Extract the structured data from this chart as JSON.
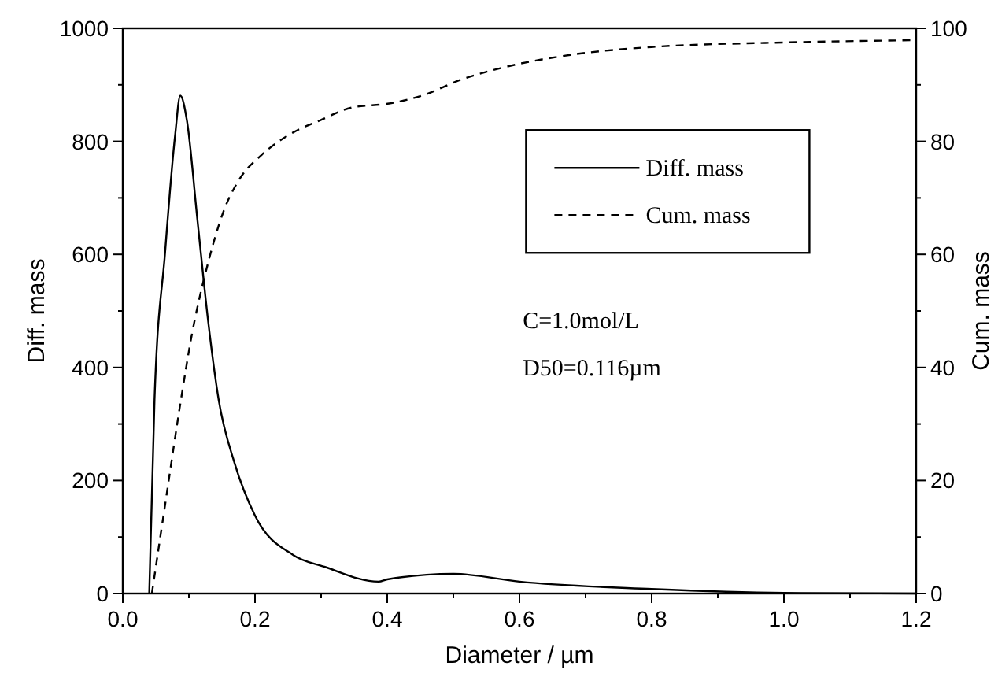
{
  "chart_data": {
    "type": "line",
    "xlabel": "Diameter / µm",
    "ylabel": "Diff. mass",
    "y2label": "Cum. mass",
    "xlim": [
      0,
      1.2
    ],
    "xticks": [
      {
        "value": 0,
        "label": "0.0"
      },
      {
        "value": 0.2,
        "label": "0.2"
      },
      {
        "value": 0.4,
        "label": "0.4"
      },
      {
        "value": 0.6,
        "label": "0.6"
      },
      {
        "value": 0.8,
        "label": "0.8"
      },
      {
        "value": 1,
        "label": "1.0"
      },
      {
        "value": 1.2,
        "label": "1.2"
      }
    ],
    "ylim": [
      0,
      1000
    ],
    "yticks": [
      0,
      200,
      400,
      600,
      800,
      1000
    ],
    "y2lim": [
      0,
      100
    ],
    "y2ticks": [
      0,
      20,
      40,
      60,
      80,
      100
    ],
    "legend": "top right",
    "marker": "none",
    "annotations": [
      "C=1.0mol/L",
      "D50=0.116µm"
    ],
    "series": [
      {
        "name": "Diff. mass",
        "color": "#000000",
        "line_style": "solid",
        "x": [
          0.04,
          0.048,
          0.064,
          0.079,
          0.087,
          0.097,
          0.113,
          0.129,
          0.145,
          0.169,
          0.2,
          0.258,
          0.306,
          0.387,
          0.4,
          0.5,
          0.6,
          0.8,
          1.0,
          1.2
        ],
        "values": [
          0,
          343,
          604,
          809,
          881,
          837,
          660,
          483,
          343,
          231,
          138,
          68,
          47,
          21,
          25,
          35,
          21,
          8,
          1,
          0
        ]
      },
      {
        "name": "Cum. mass",
        "color": "#000000",
        "axis": "y2",
        "line_style": "dashed",
        "x": [
          0.044,
          0.064,
          0.088,
          0.104,
          0.129,
          0.153,
          0.177,
          0.21,
          0.258,
          0.298,
          0.347,
          0.403,
          0.45,
          0.516,
          0.58,
          0.677,
          0.8,
          1.0,
          1.2
        ],
        "values": [
          0,
          15.7,
          34.3,
          45.5,
          58.5,
          67.8,
          73.4,
          77.6,
          81.6,
          83.7,
          86,
          86.7,
          88,
          91.1,
          93.2,
          95.3,
          96.7,
          97.5,
          97.9
        ]
      }
    ]
  }
}
